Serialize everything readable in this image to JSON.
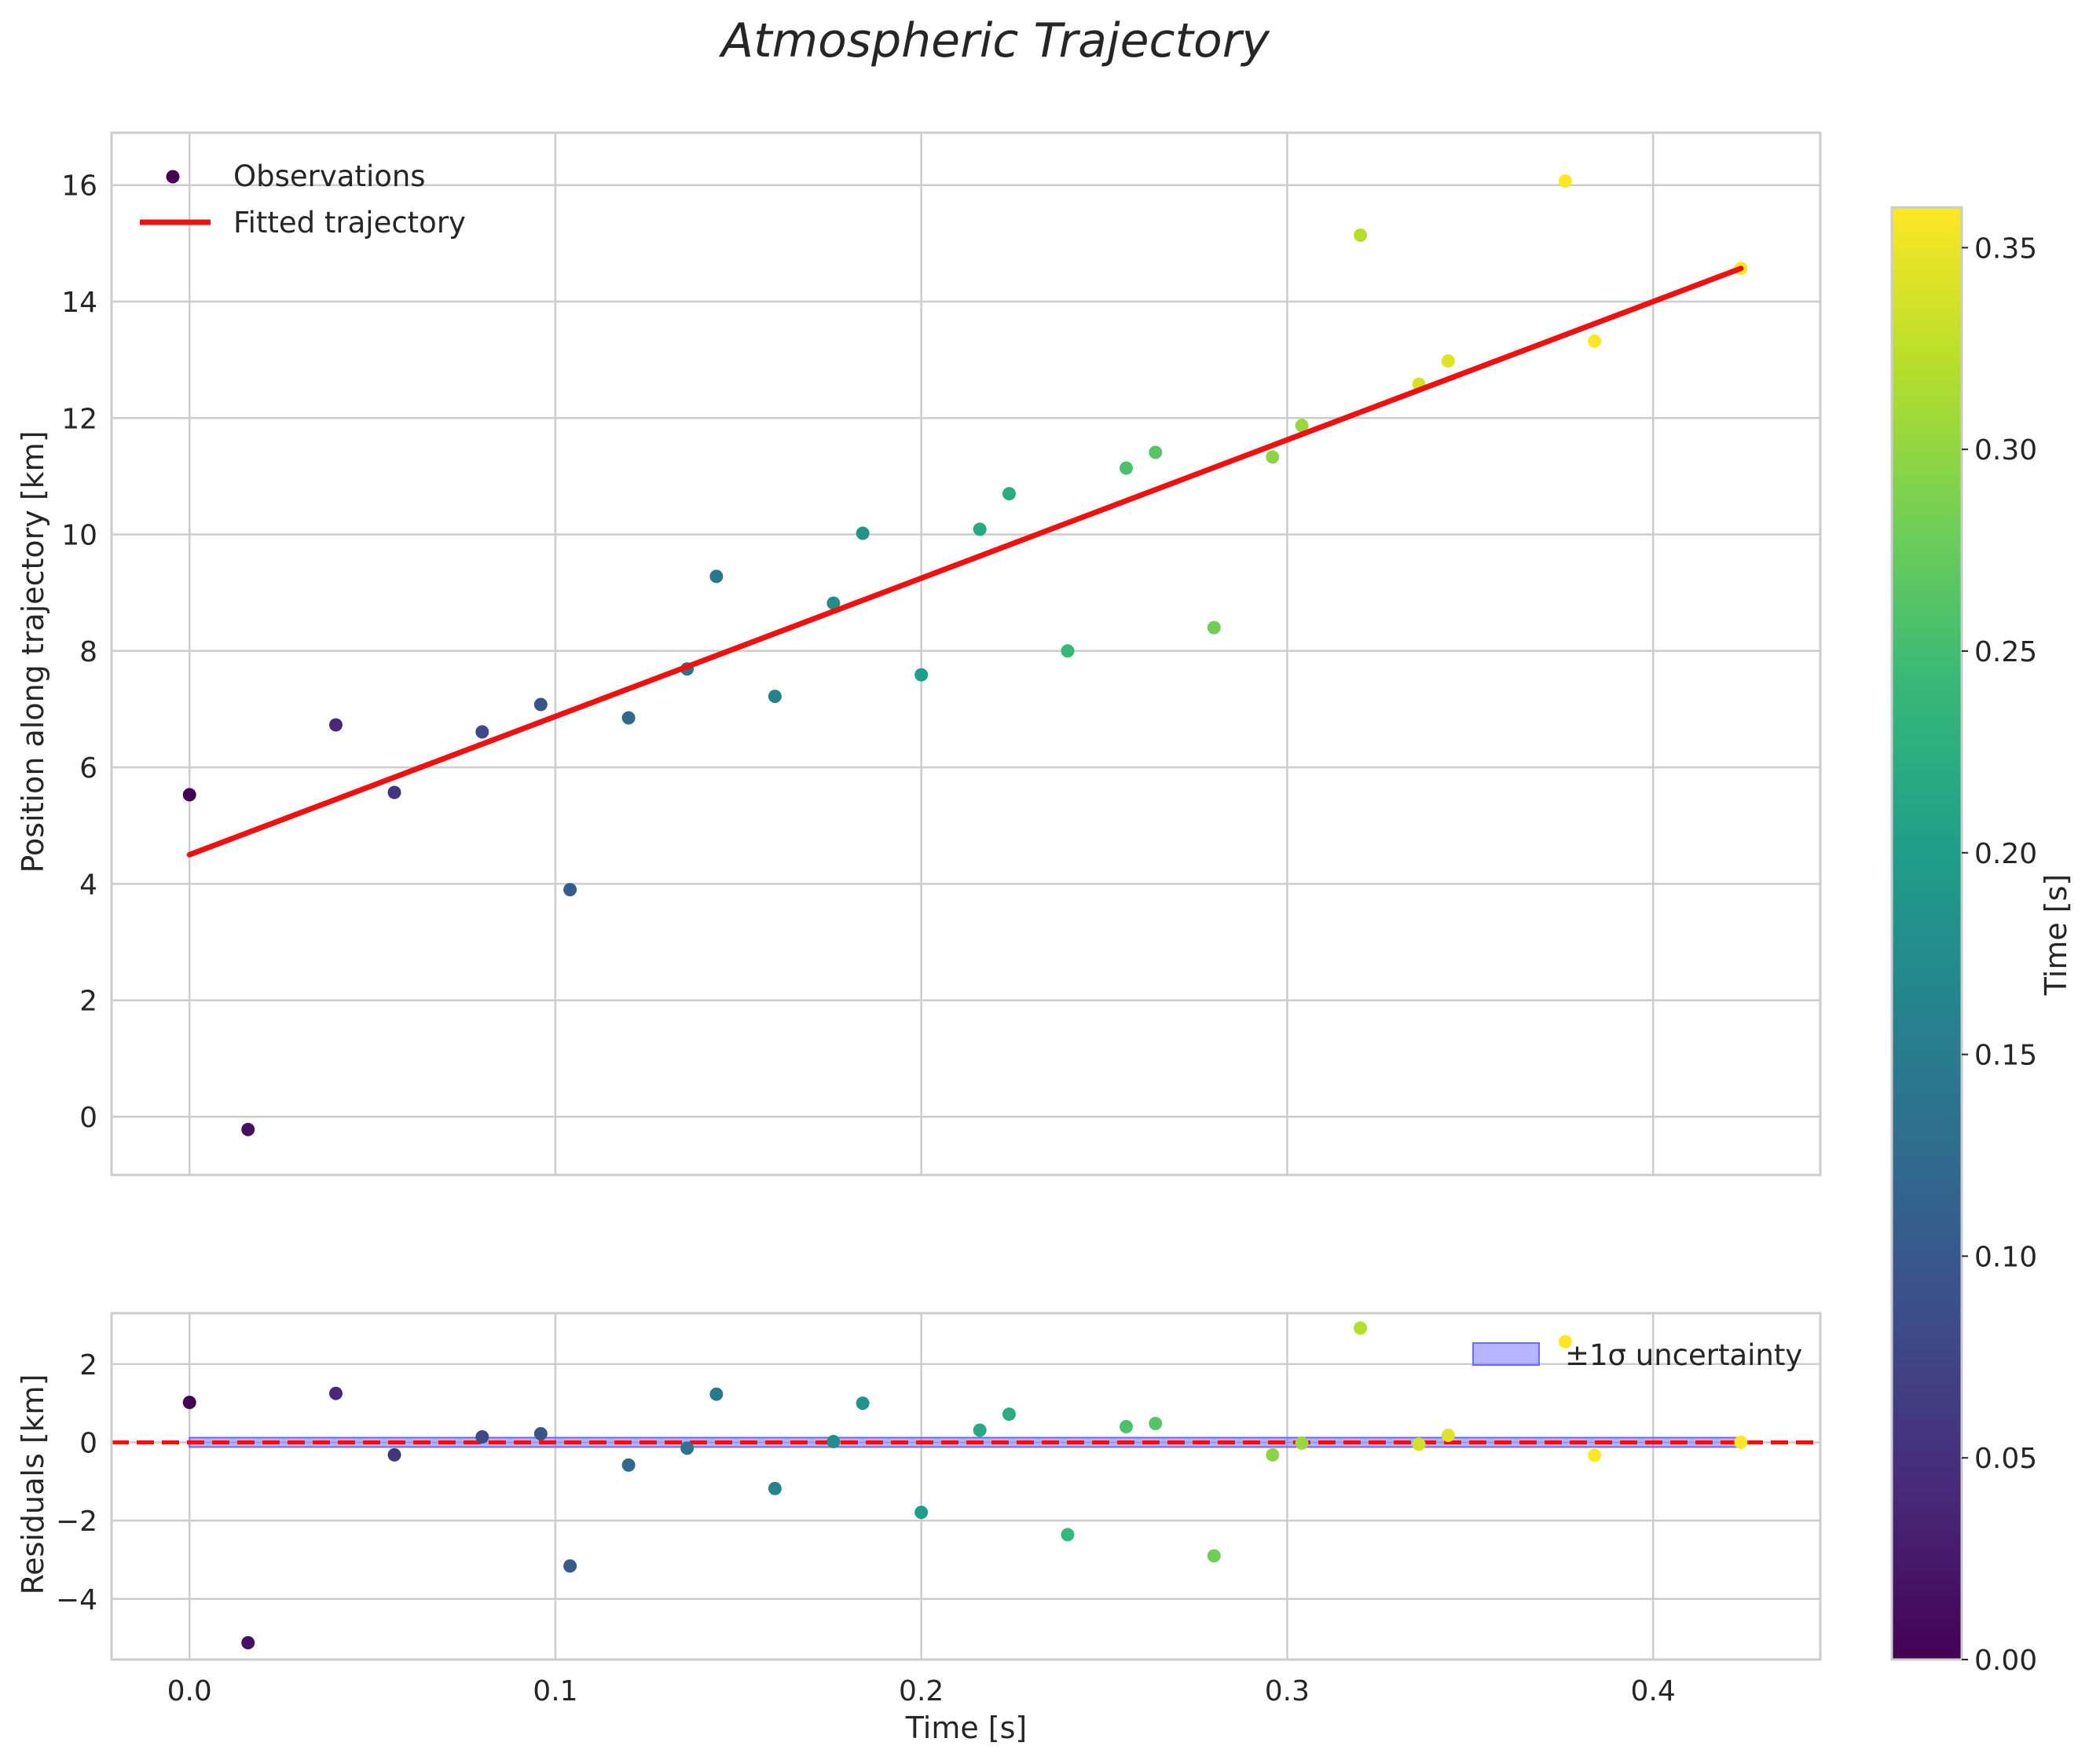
{
  "chart_data": [
    {
      "type": "scatter",
      "panel": "top",
      "title": "Atmospheric Trajectory",
      "xlabel": "",
      "ylabel": "Position along trajectory [km]",
      "xlim": [
        -0.0213,
        0.4457
      ],
      "ylim": [
        -1.0,
        16.9
      ],
      "xticks": [
        0.0,
        0.1,
        0.2,
        0.3,
        0.4
      ],
      "yticks": [
        0,
        2,
        4,
        6,
        8,
        10,
        12,
        14,
        16
      ],
      "ytick_labels": [
        "0",
        "2",
        "4",
        "6",
        "8",
        "10",
        "12",
        "14",
        "16"
      ],
      "grid": true,
      "legend_position": "upper left",
      "legend": [
        {
          "label": "Observations",
          "kind": "marker"
        },
        {
          "label": "Fitted trajectory",
          "kind": "line",
          "color": "#ee1111"
        }
      ],
      "series": [
        {
          "name": "Observations",
          "x": [
            0.0,
            0.016,
            0.04,
            0.056,
            0.08,
            0.096,
            0.104,
            0.12,
            0.136,
            0.144,
            0.16,
            0.176,
            0.184,
            0.2,
            0.216,
            0.224,
            0.24,
            0.256,
            0.264,
            0.28,
            0.296,
            0.304,
            0.32,
            0.336,
            0.344,
            0.376,
            0.384,
            0.424
          ],
          "y": [
            5.53,
            -0.22,
            6.73,
            5.57,
            6.61,
            7.08,
            3.9,
            6.85,
            7.69,
            9.28,
            7.22,
            8.82,
            10.02,
            7.59,
            10.09,
            10.7,
            8.0,
            11.14,
            11.41,
            8.4,
            11.33,
            11.87,
            15.14,
            12.58,
            12.98,
            16.07,
            13.32,
            14.57
          ]
        },
        {
          "name": "Fitted trajectory",
          "x": [
            0.0,
            0.424
          ],
          "y": [
            4.5,
            14.57
          ],
          "color": "#ee1111"
        }
      ]
    },
    {
      "type": "scatter",
      "panel": "bottom",
      "xlabel": "Time [s]",
      "ylabel": "Residuals [km]",
      "xlim": [
        -0.0213,
        0.4457
      ],
      "ylim": [
        -5.55,
        3.3
      ],
      "xticks": [
        0.0,
        0.1,
        0.2,
        0.3,
        0.4
      ],
      "xtick_labels": [
        "0.0",
        "0.1",
        "0.2",
        "0.3",
        "0.4"
      ],
      "yticks": [
        -4,
        -2,
        0,
        2
      ],
      "ytick_labels": [
        "−4",
        "−2",
        "0",
        "2"
      ],
      "grid": true,
      "legend_position": "upper right",
      "legend": [
        {
          "label": "±1σ uncertainty",
          "kind": "band",
          "color": "#6b6bff"
        }
      ],
      "uncertainty_band": {
        "x": [
          0.0,
          0.424
        ],
        "low": -0.12,
        "high": 0.12
      },
      "zero_line": {
        "y": 0,
        "color": "#ee1111",
        "style": "dashed"
      },
      "series": [
        {
          "name": "Residuals",
          "x": [
            0.0,
            0.016,
            0.04,
            0.056,
            0.08,
            0.096,
            0.104,
            0.12,
            0.136,
            0.144,
            0.16,
            0.176,
            0.184,
            0.2,
            0.216,
            0.224,
            0.24,
            0.256,
            0.264,
            0.28,
            0.296,
            0.304,
            0.32,
            0.336,
            0.344,
            0.376,
            0.384,
            0.424
          ],
          "y": [
            1.02,
            -5.12,
            1.25,
            -0.32,
            0.14,
            0.22,
            -3.16,
            -0.58,
            -0.15,
            1.23,
            -1.18,
            0.02,
            1.0,
            -1.79,
            0.31,
            0.72,
            -2.36,
            0.4,
            0.48,
            -2.9,
            -0.32,
            -0.02,
            2.92,
            -0.05,
            0.18,
            2.57,
            -0.33,
            0.0
          ]
        }
      ]
    }
  ],
  "colorbar": {
    "label": "Time [s]",
    "range": [
      0.0,
      0.36
    ],
    "ticks": [
      0.0,
      0.05,
      0.1,
      0.15,
      0.2,
      0.25,
      0.3,
      0.35
    ],
    "tick_labels": [
      "0.00",
      "0.05",
      "0.10",
      "0.15",
      "0.20",
      "0.25",
      "0.30",
      "0.35"
    ],
    "colormap": "viridis",
    "colors": [
      "#440154",
      "#482878",
      "#3e4989",
      "#31688e",
      "#26828e",
      "#1f9e89",
      "#35b779",
      "#6ece58",
      "#b5de2b",
      "#fde725"
    ]
  }
}
